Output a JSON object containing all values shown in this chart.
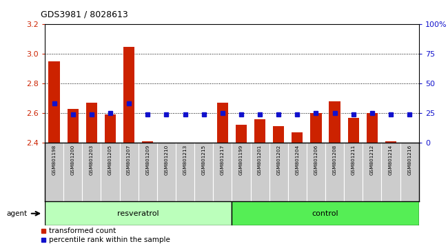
{
  "title": "GDS3981 / 8028613",
  "samples": [
    "GSM801198",
    "GSM801200",
    "GSM801203",
    "GSM801205",
    "GSM801207",
    "GSM801209",
    "GSM801210",
    "GSM801213",
    "GSM801215",
    "GSM801217",
    "GSM801199",
    "GSM801201",
    "GSM801202",
    "GSM801204",
    "GSM801206",
    "GSM801208",
    "GSM801211",
    "GSM801212",
    "GSM801214",
    "GSM801216"
  ],
  "red_values": [
    2.95,
    2.63,
    2.67,
    2.59,
    3.05,
    2.41,
    2.4,
    2.4,
    2.4,
    2.67,
    2.52,
    2.56,
    2.51,
    2.47,
    2.6,
    2.68,
    2.57,
    2.6,
    2.41,
    2.4
  ],
  "blue_pct": [
    33,
    24,
    24,
    25,
    33,
    24,
    24,
    24,
    24,
    25,
    24,
    24,
    24,
    24,
    25,
    25,
    24,
    25,
    24,
    24
  ],
  "resveratrol_count": 10,
  "control_count": 10,
  "ylim_left": [
    2.4,
    3.2
  ],
  "ylim_right": [
    0,
    100
  ],
  "yticks_left": [
    2.4,
    2.6,
    2.8,
    3.0,
    3.2
  ],
  "yticks_right": [
    0,
    25,
    50,
    75,
    100
  ],
  "bar_bottom": 2.4,
  "red_color": "#cc2200",
  "blue_color": "#1111cc",
  "resv_color": "#bbffbb",
  "ctrl_color": "#55ee55",
  "plot_bg": "#ffffff",
  "label_bg": "#cccccc"
}
